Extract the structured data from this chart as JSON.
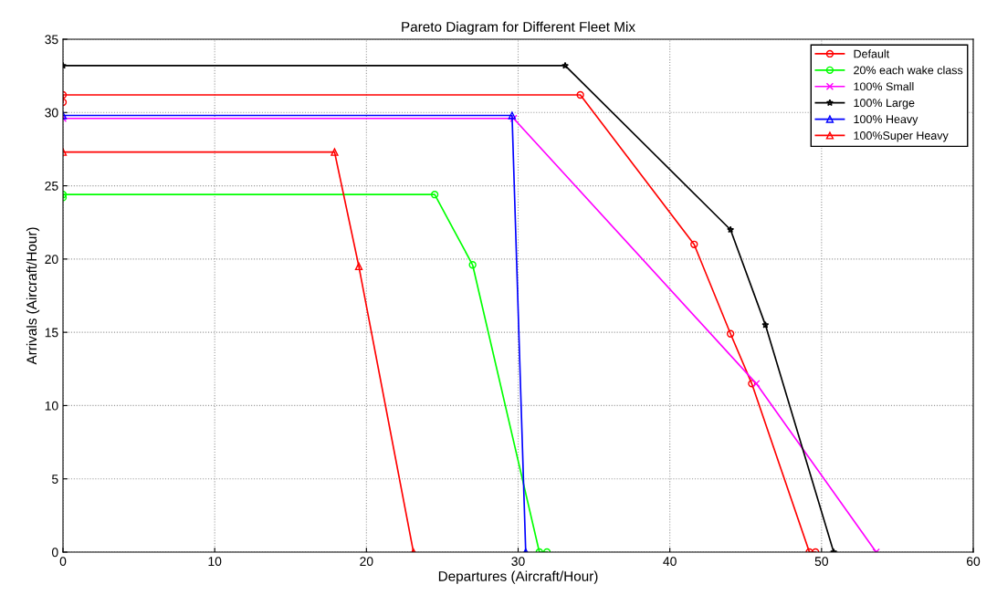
{
  "chart_data": {
    "type": "line",
    "title": "Pareto Diagram for Different Fleet Mix",
    "xlabel": "Departures (Aircraft/Hour)",
    "ylabel": "Arrivals (Aircraft/Hour)",
    "xlim": [
      0,
      60
    ],
    "ylim": [
      0,
      35
    ],
    "xticks": [
      0,
      10,
      20,
      30,
      40,
      50,
      60
    ],
    "yticks": [
      0,
      5,
      10,
      15,
      20,
      25,
      30,
      35
    ],
    "grid": true,
    "legend": "top right",
    "line_style": "solid",
    "series": [
      {
        "name": "Default",
        "color": "#ff0000",
        "marker": "circle",
        "x": [
          0,
          0,
          34.1,
          41.6,
          44.0,
          45.4,
          49.2,
          49.6
        ],
        "values": [
          30.7,
          31.2,
          31.2,
          21.0,
          14.9,
          11.5,
          0,
          0
        ]
      },
      {
        "name": "20% each wake class",
        "color": "#00ff00",
        "marker": "circle",
        "x": [
          0,
          0,
          24.5,
          27.0,
          31.4,
          31.9
        ],
        "values": [
          24.2,
          24.4,
          24.4,
          19.6,
          0,
          0
        ]
      },
      {
        "name": "100% Small",
        "color": "#ff00ff",
        "marker": "cross",
        "x": [
          0,
          29.7,
          45.7,
          53.6
        ],
        "values": [
          29.6,
          29.6,
          11.5,
          0
        ]
      },
      {
        "name": "100% Large",
        "color": "#000000",
        "marker": "star",
        "x": [
          0,
          33.1,
          44.0,
          46.3,
          50.8
        ],
        "values": [
          33.2,
          33.2,
          22.0,
          15.5,
          0
        ]
      },
      {
        "name": "100% Heavy",
        "color": "#0000ff",
        "marker": "triangle",
        "x": [
          0,
          29.6,
          30.5
        ],
        "values": [
          29.8,
          29.8,
          0
        ]
      },
      {
        "name": "100%Super Heavy",
        "color": "#ff0000",
        "marker": "triangle",
        "x": [
          0,
          17.9,
          19.5,
          23.1
        ],
        "values": [
          27.3,
          27.3,
          19.5,
          0
        ]
      }
    ]
  }
}
